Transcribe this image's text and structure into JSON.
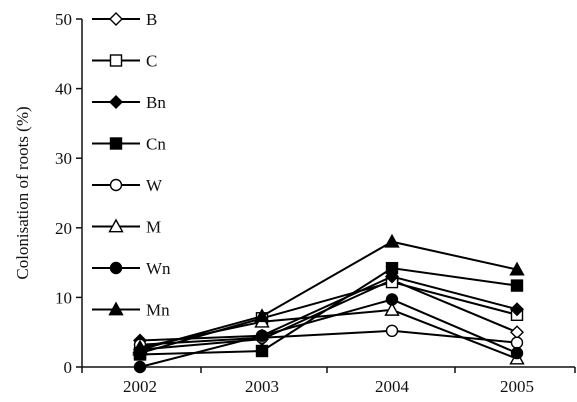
{
  "chart_data": {
    "type": "line",
    "title": "",
    "xlabel": "",
    "ylabel": "Colonisation of roots (%)",
    "categories": [
      "2002",
      "2003",
      "2004",
      "2005"
    ],
    "ylim": [
      0,
      50
    ],
    "yticks": [
      0,
      10,
      20,
      30,
      40,
      50
    ],
    "grid": false,
    "legend_position": "top-left",
    "series": [
      {
        "name": "B",
        "marker": "diamond-open",
        "values": [
          2.5,
          4.0,
          12.5,
          5.0
        ]
      },
      {
        "name": "C",
        "marker": "square-open",
        "values": [
          2.0,
          7.0,
          12.2,
          7.5
        ]
      },
      {
        "name": "Bn",
        "marker": "diamond-filled",
        "values": [
          3.8,
          4.5,
          13.0,
          8.3
        ]
      },
      {
        "name": "Cn",
        "marker": "square-filled",
        "values": [
          1.8,
          2.3,
          14.2,
          11.7
        ]
      },
      {
        "name": "W",
        "marker": "circle-open",
        "values": [
          3.2,
          4.2,
          5.2,
          3.5
        ]
      },
      {
        "name": "M",
        "marker": "triangle-open",
        "values": [
          2.8,
          6.5,
          8.2,
          1.2
        ]
      },
      {
        "name": "Wn",
        "marker": "circle-filled",
        "values": [
          0.0,
          4.5,
          9.7,
          2.0
        ]
      },
      {
        "name": "Mn",
        "marker": "triangle-filled",
        "values": [
          2.5,
          7.3,
          18.0,
          14.0
        ]
      }
    ]
  }
}
